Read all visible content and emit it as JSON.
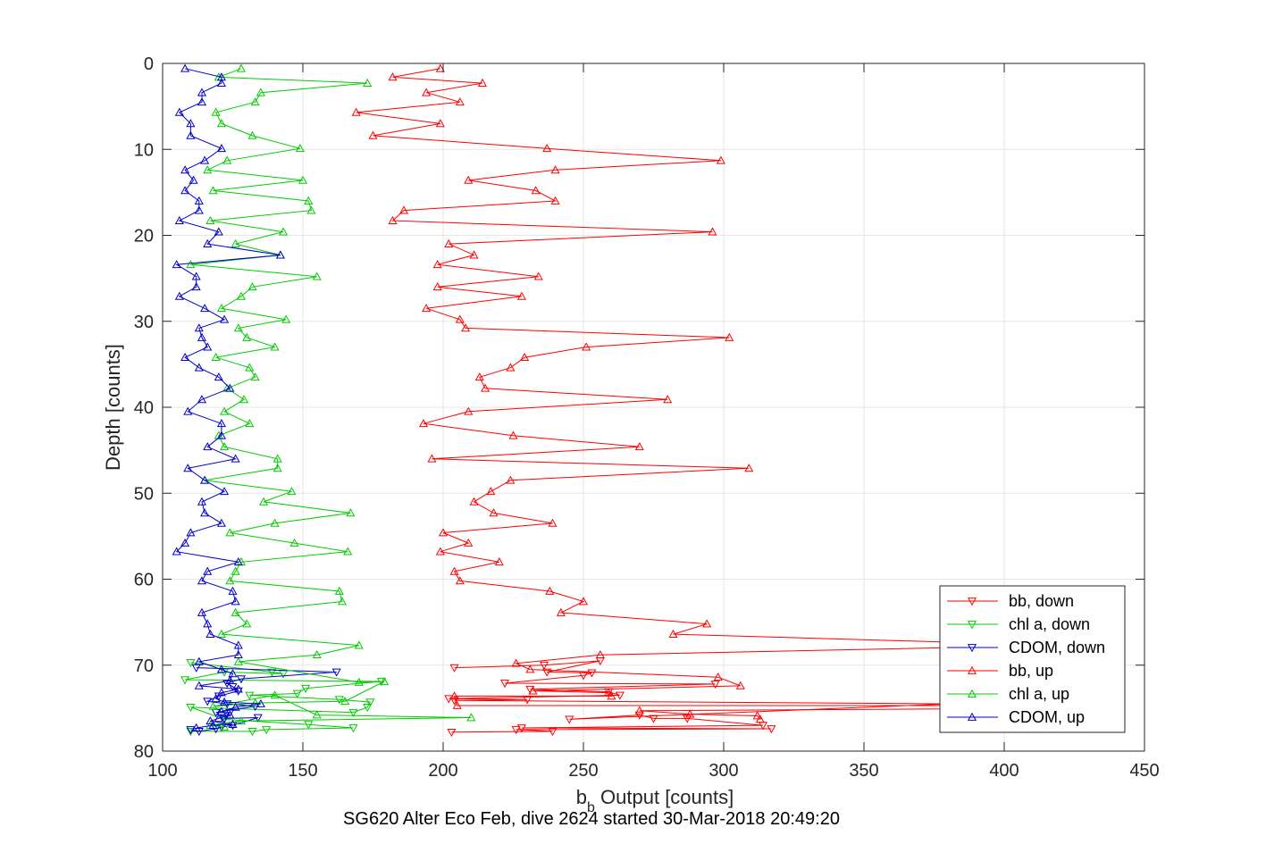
{
  "chart_data": {
    "type": "line",
    "title": "",
    "footer": "SG620 Alter Eco Feb, dive 2624 started 30-Mar-2018 20:49:20",
    "xlabel_main": "b",
    "xlabel_sub": "b",
    "xlabel_rest": " Output [counts]",
    "ylabel": "Depth [counts]",
    "xlim": [
      100,
      450
    ],
    "ylim": [
      0,
      80
    ],
    "y_reversed": true,
    "grid": true,
    "legend_position": "bottom-right",
    "xticks": [
      "100",
      "150",
      "200",
      "250",
      "300",
      "350",
      "400",
      "450"
    ],
    "yticks": [
      "0",
      "10",
      "20",
      "30",
      "40",
      "50",
      "60",
      "70",
      "80"
    ],
    "series": [
      {
        "name": "bb, down",
        "color": "#ff0000",
        "marker": "down",
        "points": [
          [
            204,
            70.3
          ],
          [
            236,
            70.0
          ],
          [
            256,
            69.5
          ],
          [
            237,
            70.8
          ],
          [
            253,
            70.9
          ],
          [
            250,
            71.2
          ],
          [
            222,
            72.1
          ],
          [
            297,
            72.2
          ],
          [
            231,
            72.8
          ],
          [
            259,
            73.1
          ],
          [
            263,
            73.5
          ],
          [
            202,
            73.9
          ],
          [
            230,
            74.0
          ],
          [
            204,
            74.1
          ],
          [
            380,
            74.5
          ],
          [
            245,
            76.3
          ],
          [
            270,
            75.8
          ],
          [
            275,
            76.2
          ],
          [
            287,
            76.2
          ],
          [
            314,
            77.0
          ],
          [
            228,
            77.3
          ],
          [
            317,
            77.4
          ],
          [
            226,
            77.5
          ],
          [
            239,
            77.7
          ],
          [
            203,
            77.8
          ]
        ]
      },
      {
        "name": "chl a, down",
        "color": "#00cc00",
        "marker": "down",
        "points": [
          [
            110,
            69.7
          ],
          [
            139,
            70.8
          ],
          [
            143,
            71.0
          ],
          [
            122,
            70.8
          ],
          [
            108,
            71.7
          ],
          [
            178,
            71.9
          ],
          [
            151,
            72.7
          ],
          [
            148,
            73.3
          ],
          [
            131,
            73.5
          ],
          [
            163,
            74.0
          ],
          [
            174,
            74.3
          ],
          [
            173,
            74.9
          ],
          [
            168,
            75.5
          ],
          [
            110,
            74.9
          ],
          [
            122,
            76.3
          ],
          [
            152,
            76.9
          ],
          [
            168,
            77.3
          ],
          [
            137,
            77.5
          ],
          [
            132,
            77.7
          ],
          [
            110,
            77.7
          ]
        ]
      },
      {
        "name": "CDOM, down",
        "color": "#0000cc",
        "marker": "down",
        "points": [
          [
            112,
            70.3
          ],
          [
            162,
            70.8
          ],
          [
            128,
            71.6
          ],
          [
            123,
            72.1
          ],
          [
            125,
            72.5
          ],
          [
            127,
            73.0
          ],
          [
            120,
            73.6
          ],
          [
            116,
            74.2
          ],
          [
            123,
            74.5
          ],
          [
            133,
            74.8
          ],
          [
            119,
            75.5
          ],
          [
            124,
            75.5
          ],
          [
            122,
            76.2
          ],
          [
            134,
            76.1
          ],
          [
            125,
            77.0
          ],
          [
            121,
            77.2
          ],
          [
            119,
            77.4
          ],
          [
            113,
            77.7
          ],
          [
            110,
            77.5
          ]
        ]
      },
      {
        "name": "bb, up",
        "color": "#ff0000",
        "marker": "up",
        "points": [
          [
            199,
            0.6
          ],
          [
            182,
            1.6
          ],
          [
            214,
            2.3
          ],
          [
            194,
            3.4
          ],
          [
            206,
            4.5
          ],
          [
            169,
            5.7
          ],
          [
            199,
            7.0
          ],
          [
            175,
            8.4
          ],
          [
            237,
            9.9
          ],
          [
            299,
            11.3
          ],
          [
            240,
            12.4
          ],
          [
            209,
            13.6
          ],
          [
            233,
            14.8
          ],
          [
            240,
            16.0
          ],
          [
            186,
            17.1
          ],
          [
            182,
            18.3
          ],
          [
            296,
            19.6
          ],
          [
            202,
            21.0
          ],
          [
            211,
            22.3
          ],
          [
            198,
            23.4
          ],
          [
            234,
            24.8
          ],
          [
            198,
            26.0
          ],
          [
            228,
            27.1
          ],
          [
            194,
            28.5
          ],
          [
            206,
            29.8
          ],
          [
            208,
            30.8
          ],
          [
            302,
            31.9
          ],
          [
            251,
            33.0
          ],
          [
            229,
            34.2
          ],
          [
            224,
            35.4
          ],
          [
            213,
            36.5
          ],
          [
            215,
            37.8
          ],
          [
            280,
            39.1
          ],
          [
            209,
            40.5
          ],
          [
            193,
            41.9
          ],
          [
            225,
            43.3
          ],
          [
            270,
            44.6
          ],
          [
            196,
            46.0
          ],
          [
            309,
            47.1
          ],
          [
            224,
            48.5
          ],
          [
            217,
            49.8
          ],
          [
            211,
            51.0
          ],
          [
            218,
            52.3
          ],
          [
            239,
            53.5
          ],
          [
            200,
            54.6
          ],
          [
            209,
            55.8
          ],
          [
            199,
            56.8
          ],
          [
            220,
            58.0
          ],
          [
            204,
            59.1
          ],
          [
            206,
            60.2
          ],
          [
            238,
            61.4
          ],
          [
            250,
            62.6
          ],
          [
            242,
            63.9
          ],
          [
            294,
            65.2
          ],
          [
            282,
            66.4
          ],
          [
            420,
            67.7
          ],
          [
            256,
            68.8
          ],
          [
            226,
            69.8
          ],
          [
            231,
            70.5
          ],
          [
            298,
            71.4
          ],
          [
            306,
            72.4
          ],
          [
            232,
            73.0
          ],
          [
            259,
            73.2
          ],
          [
            260,
            73.6
          ],
          [
            204,
            73.6
          ],
          [
            205,
            74.7
          ],
          [
            410,
            74.7
          ],
          [
            400,
            74.8
          ],
          [
            380,
            75.1
          ],
          [
            270,
            75.3
          ],
          [
            288,
            75.7
          ],
          [
            312,
            75.9
          ],
          [
            313,
            76.3
          ]
        ]
      },
      {
        "name": "chl a, up",
        "color": "#00cc00",
        "marker": "up",
        "points": [
          [
            128,
            0.6
          ],
          [
            120,
            1.6
          ],
          [
            173,
            2.3
          ],
          [
            135,
            3.4
          ],
          [
            133,
            4.5
          ],
          [
            119,
            5.7
          ],
          [
            121,
            7.0
          ],
          [
            132,
            8.4
          ],
          [
            149,
            9.9
          ],
          [
            123,
            11.3
          ],
          [
            116,
            12.4
          ],
          [
            150,
            13.6
          ],
          [
            118,
            14.8
          ],
          [
            152,
            16.0
          ],
          [
            153,
            17.1
          ],
          [
            117,
            18.3
          ],
          [
            143,
            19.6
          ],
          [
            126,
            21.0
          ],
          [
            142,
            22.3
          ],
          [
            110,
            23.4
          ],
          [
            155,
            24.8
          ],
          [
            132,
            26.0
          ],
          [
            128,
            27.1
          ],
          [
            121,
            28.5
          ],
          [
            144,
            29.8
          ],
          [
            127,
            30.8
          ],
          [
            130,
            31.9
          ],
          [
            140,
            33.0
          ],
          [
            119,
            34.2
          ],
          [
            131,
            35.4
          ],
          [
            133,
            36.5
          ],
          [
            123,
            37.8
          ],
          [
            129,
            39.1
          ],
          [
            122,
            40.5
          ],
          [
            131,
            41.9
          ],
          [
            120,
            43.3
          ],
          [
            122,
            44.6
          ],
          [
            141,
            46.0
          ],
          [
            141,
            47.1
          ],
          [
            115,
            48.5
          ],
          [
            146,
            49.8
          ],
          [
            136,
            51.0
          ],
          [
            167,
            52.3
          ],
          [
            140,
            53.5
          ],
          [
            124,
            54.6
          ],
          [
            147,
            55.8
          ],
          [
            166,
            56.8
          ],
          [
            128,
            58.0
          ],
          [
            126,
            59.1
          ],
          [
            124,
            60.2
          ],
          [
            163,
            61.4
          ],
          [
            164,
            62.6
          ],
          [
            126,
            63.9
          ],
          [
            130,
            65.2
          ],
          [
            121,
            66.4
          ],
          [
            170,
            67.7
          ],
          [
            155,
            68.8
          ],
          [
            127,
            69.6
          ],
          [
            170,
            72.0
          ],
          [
            179,
            71.9
          ],
          [
            165,
            74.2
          ],
          [
            133,
            74.4
          ],
          [
            118,
            74.8
          ],
          [
            140,
            73.5
          ],
          [
            155,
            75.8
          ],
          [
            210,
            76.1
          ],
          [
            128,
            76.5
          ],
          [
            117,
            77.0
          ],
          [
            122,
            77.2
          ]
        ]
      },
      {
        "name": "CDOM, up",
        "color": "#0000cc",
        "marker": "up",
        "points": [
          [
            108,
            0.6
          ],
          [
            121,
            1.6
          ],
          [
            121,
            2.3
          ],
          [
            114,
            3.4
          ],
          [
            114,
            4.5
          ],
          [
            106,
            5.7
          ],
          [
            110,
            7.0
          ],
          [
            110,
            8.4
          ],
          [
            121,
            9.9
          ],
          [
            115,
            11.3
          ],
          [
            108,
            12.4
          ],
          [
            111,
            13.6
          ],
          [
            108,
            14.8
          ],
          [
            113,
            16.0
          ],
          [
            113,
            17.1
          ],
          [
            106,
            18.3
          ],
          [
            120,
            19.6
          ],
          [
            116,
            21.0
          ],
          [
            142,
            22.3
          ],
          [
            105,
            23.4
          ],
          [
            112,
            24.8
          ],
          [
            112,
            26.0
          ],
          [
            106,
            27.1
          ],
          [
            115,
            28.5
          ],
          [
            122,
            29.8
          ],
          [
            113,
            30.8
          ],
          [
            114,
            31.9
          ],
          [
            116,
            33.0
          ],
          [
            108,
            34.2
          ],
          [
            113,
            35.4
          ],
          [
            120,
            36.5
          ],
          [
            124,
            37.8
          ],
          [
            114,
            39.1
          ],
          [
            109,
            40.5
          ],
          [
            121,
            41.9
          ],
          [
            121,
            43.3
          ],
          [
            116,
            44.6
          ],
          [
            126,
            46.0
          ],
          [
            109,
            47.1
          ],
          [
            115,
            48.5
          ],
          [
            122,
            49.8
          ],
          [
            114,
            51.0
          ],
          [
            115,
            52.3
          ],
          [
            121,
            53.5
          ],
          [
            110,
            54.6
          ],
          [
            108,
            55.8
          ],
          [
            105,
            56.8
          ],
          [
            127,
            58.0
          ],
          [
            116,
            59.1
          ],
          [
            114,
            60.2
          ],
          [
            125,
            61.4
          ],
          [
            126,
            62.6
          ],
          [
            114,
            63.9
          ],
          [
            116,
            65.2
          ],
          [
            117,
            66.4
          ],
          [
            127,
            67.7
          ],
          [
            127,
            68.8
          ],
          [
            113,
            69.6
          ],
          [
            121,
            70.5
          ],
          [
            125,
            71.0
          ],
          [
            124,
            71.8
          ],
          [
            113,
            72.4
          ],
          [
            127,
            72.8
          ],
          [
            121,
            73.2
          ],
          [
            119,
            73.9
          ],
          [
            122,
            74.3
          ],
          [
            135,
            74.5
          ],
          [
            126,
            74.9
          ],
          [
            121,
            75.4
          ],
          [
            124,
            75.8
          ],
          [
            120,
            76.2
          ],
          [
            117,
            76.5
          ],
          [
            125,
            76.9
          ],
          [
            118,
            77.0
          ],
          [
            112,
            77.3
          ]
        ]
      }
    ]
  }
}
